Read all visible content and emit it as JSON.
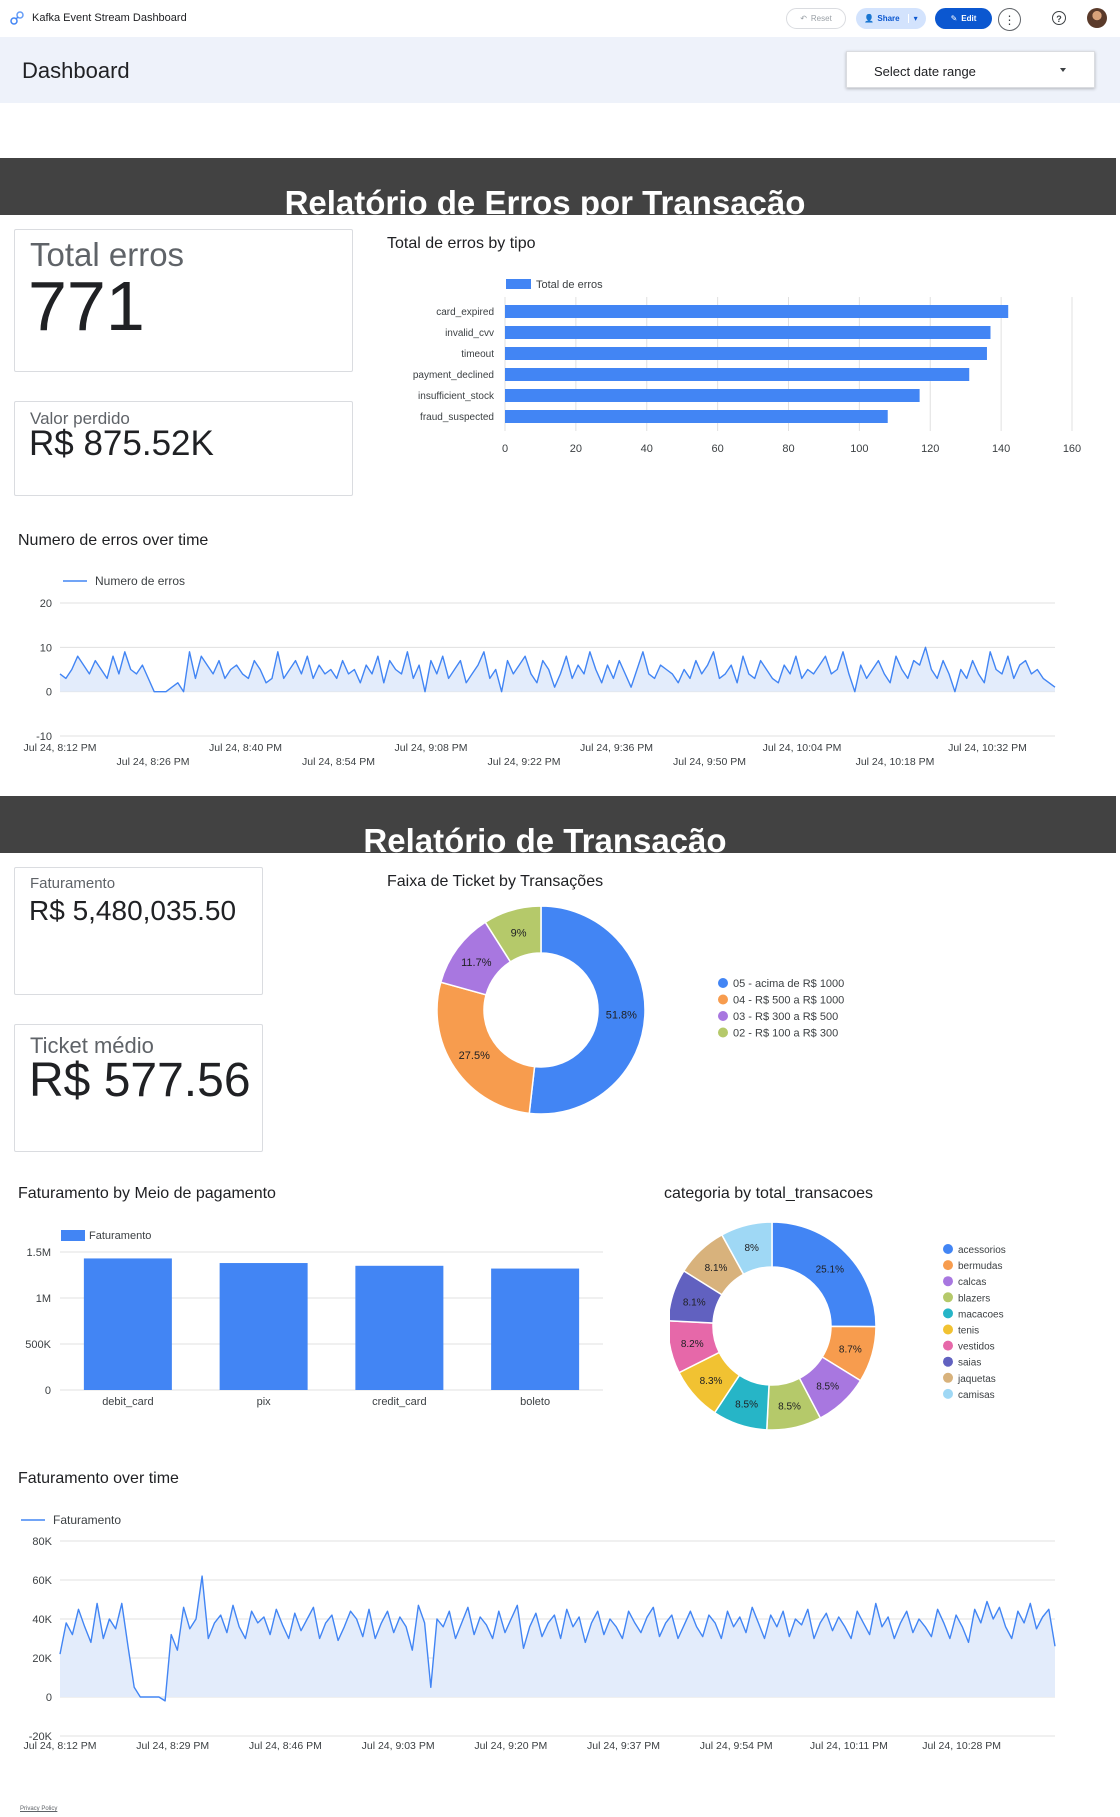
{
  "app": {
    "title": "Kafka Event Stream Dashboard",
    "buttons": {
      "reset": "Reset",
      "share": "Share",
      "edit": "Edit"
    }
  },
  "header": {
    "title": "Dashboard",
    "date_select": "Select date range"
  },
  "section1": {
    "title": "Relatório de Erros por Transação"
  },
  "kpi_total_erros": {
    "label": "Total erros",
    "value": "771"
  },
  "kpi_valor_perdido": {
    "label": "Valor perdido",
    "value": "R$ 875.52K"
  },
  "section2": {
    "title": "Relatório de Transação"
  },
  "kpi_faturamento": {
    "label": "Faturamento",
    "value": "R$ 5,480,035.50"
  },
  "kpi_ticket": {
    "label": "Ticket médio",
    "value": "R$ 577.56"
  },
  "footer": {
    "privacy": "Privacy Policy"
  },
  "chart_data": [
    {
      "id": "erros_tipo",
      "type": "bar",
      "orientation": "horizontal",
      "title": "Total de erros by tipo",
      "categories": [
        "card_expired",
        "invalid_cvv",
        "timeout",
        "payment_declined",
        "insufficient_stock",
        "fraud_suspected"
      ],
      "series": [
        {
          "name": "Total de erros",
          "values": [
            142,
            137,
            136,
            131,
            117,
            108
          ]
        }
      ],
      "xlim": [
        0,
        160
      ],
      "xticks": [
        0,
        20,
        40,
        60,
        80,
        100,
        120,
        140,
        160
      ],
      "legend": "top-left",
      "color": "#4285f4"
    },
    {
      "id": "erros_time",
      "type": "line",
      "title": "Numero de erros over time",
      "series": [
        {
          "name": "Numero de erros",
          "values": [
            4,
            3,
            5,
            8,
            6,
            4,
            7,
            5,
            3,
            8,
            4,
            9,
            5,
            4,
            6,
            3,
            0,
            0,
            0,
            1,
            2,
            0,
            9,
            3,
            8,
            6,
            4,
            7,
            3,
            5,
            6,
            4,
            3,
            7,
            5,
            2,
            3,
            9,
            3,
            5,
            7,
            4,
            8,
            3,
            6,
            4,
            5,
            3,
            7,
            4,
            5,
            2,
            6,
            4,
            8,
            2,
            7,
            5,
            4,
            9,
            3,
            6,
            0,
            7,
            4,
            8,
            3,
            5,
            7,
            2,
            4,
            6,
            9,
            3,
            5,
            0,
            7,
            4,
            6,
            8,
            4,
            2,
            7,
            5,
            1,
            4,
            8,
            3,
            6,
            4,
            9,
            5,
            2,
            6,
            3,
            7,
            4,
            1,
            5,
            9,
            4,
            3,
            6,
            5,
            4,
            2,
            5,
            3,
            7,
            4,
            6,
            9,
            3,
            4,
            6,
            2,
            8,
            4,
            3,
            7,
            5,
            3,
            2,
            6,
            4,
            8,
            3,
            5,
            4,
            6,
            8,
            4,
            5,
            9,
            4,
            0,
            6,
            3,
            5,
            7,
            4,
            2,
            8,
            5,
            3,
            7,
            6,
            10,
            5,
            3,
            7,
            4,
            0,
            5,
            3,
            7,
            4,
            2,
            9,
            5,
            4,
            8,
            3,
            6,
            7,
            4,
            5,
            3,
            2,
            1
          ]
        }
      ],
      "ylim": [
        -10,
        20
      ],
      "yticks": [
        -10,
        0,
        10,
        20
      ],
      "xticks_row1": [
        "Jul 24, 8:12 PM",
        "Jul 24, 8:40 PM",
        "Jul 24, 9:08 PM",
        "Jul 24, 9:36 PM",
        "Jul 24, 10:04 PM",
        "Jul 24, 10:32 PM"
      ],
      "xticks_row2": [
        "Jul 24, 8:26 PM",
        "Jul 24, 8:54 PM",
        "Jul 24, 9:22 PM",
        "Jul 24, 9:50 PM",
        "Jul 24, 10:18 PM"
      ],
      "legend": "top-left",
      "color": "#4285f4"
    },
    {
      "id": "ticket_faixa",
      "type": "pie",
      "donut": true,
      "title": "Faixa de Ticket by Transações",
      "labels": [
        "05 - acima de R$ 1000",
        "04 - R$ 500 a R$ 1000",
        "03 - R$ 300 a R$ 500",
        "02 - R$ 100 a R$ 300"
      ],
      "values": [
        51.8,
        27.5,
        11.7,
        9
      ],
      "value_labels": [
        "51.8%",
        "27.5%",
        "11.7%",
        "9%"
      ],
      "colors": [
        "#4285f4",
        "#f79c4e",
        "#a877e0",
        "#b5c96a"
      ],
      "legend": "right"
    },
    {
      "id": "fat_meio",
      "type": "bar",
      "title": "Faturamento by Meio de pagamento",
      "categories": [
        "debit_card",
        "pix",
        "credit_card",
        "boleto"
      ],
      "series": [
        {
          "name": "Faturamento",
          "values": [
            1430000,
            1380000,
            1350000,
            1320000
          ]
        }
      ],
      "ylim": [
        0,
        1500000
      ],
      "yticks": [
        0,
        500000,
        1000000,
        1500000
      ],
      "ytick_labels": [
        "0",
        "500K",
        "1M",
        "1.5M"
      ],
      "legend": "top-left",
      "color": "#4285f4"
    },
    {
      "id": "categoria",
      "type": "pie",
      "donut": true,
      "title": "categoria by total_transacoes",
      "labels": [
        "acessorios",
        "bermudas",
        "calcas",
        "blazers",
        "macacoes",
        "tenis",
        "vestidos",
        "saias",
        "jaquetas",
        "camisas"
      ],
      "values": [
        25.1,
        8.7,
        8.5,
        8.5,
        8.5,
        8.3,
        8.2,
        8.1,
        8.1,
        8
      ],
      "value_labels": [
        "25.1%",
        "8.7%",
        "8.5%",
        "8.5%",
        "8.5%",
        "8.3%",
        "8.2%",
        "8.1%",
        "8.1%",
        "8%"
      ],
      "colors": [
        "#4285f4",
        "#f79c4e",
        "#a877e0",
        "#b5c96a",
        "#26b5c7",
        "#f1c232",
        "#e668a9",
        "#6161c0",
        "#d8b27c",
        "#9fd8f5"
      ],
      "legend": "right"
    },
    {
      "id": "fat_time",
      "type": "line",
      "title": "Faturamento over time",
      "series": [
        {
          "name": "Faturamento",
          "values": [
            22000,
            38000,
            32000,
            45000,
            36000,
            28000,
            48000,
            30000,
            40000,
            35000,
            48000,
            26000,
            5000,
            0,
            0,
            0,
            0,
            -2000,
            32000,
            24000,
            46000,
            35000,
            40000,
            62000,
            30000,
            38000,
            42000,
            33000,
            47000,
            36000,
            30000,
            44000,
            38000,
            41000,
            32000,
            45000,
            37000,
            30000,
            43000,
            34000,
            40000,
            46000,
            30000,
            38000,
            42000,
            29000,
            36000,
            44000,
            40000,
            31000,
            45000,
            30000,
            38000,
            44000,
            33000,
            41000,
            36000,
            24000,
            47000,
            38000,
            5000,
            40000,
            36000,
            44000,
            30000,
            38000,
            46000,
            32000,
            41000,
            37000,
            30000,
            44000,
            33000,
            40000,
            47000,
            25000,
            36000,
            43000,
            31000,
            38000,
            42000,
            30000,
            45000,
            36000,
            41000,
            28000,
            38000,
            44000,
            32000,
            40000,
            36000,
            30000,
            44000,
            38000,
            33000,
            41000,
            46000,
            31000,
            38000,
            42000,
            30000,
            37000,
            44000,
            36000,
            31000,
            42000,
            38000,
            30000,
            44000,
            36000,
            41000,
            33000,
            46000,
            38000,
            30000,
            42000,
            36000,
            44000,
            31000,
            40000,
            37000,
            45000,
            30000,
            38000,
            43000,
            34000,
            41000,
            36000,
            30000,
            44000,
            38000,
            32000,
            48000,
            36000,
            41000,
            30000,
            38000,
            44000,
            33000,
            40000,
            36000,
            31000,
            45000,
            38000,
            30000,
            42000,
            36000,
            28000,
            45000,
            38000,
            49000,
            40000,
            46000,
            36000,
            30000,
            44000,
            38000,
            48000,
            35000,
            41000,
            45000,
            26000
          ]
        }
      ],
      "ylim": [
        -20000,
        80000
      ],
      "yticks": [
        -20000,
        0,
        20000,
        40000,
        60000,
        80000
      ],
      "ytick_labels": [
        "-20K",
        "0",
        "20K",
        "40K",
        "60K",
        "80K"
      ],
      "xticks": [
        "Jul 24, 8:12 PM",
        "Jul 24, 8:29 PM",
        "Jul 24, 8:46 PM",
        "Jul 24, 9:03 PM",
        "Jul 24, 9:20 PM",
        "Jul 24, 9:37 PM",
        "Jul 24, 9:54 PM",
        "Jul 24, 10:11 PM",
        "Jul 24, 10:28 PM"
      ],
      "legend": "top-left",
      "color": "#4285f4"
    }
  ]
}
